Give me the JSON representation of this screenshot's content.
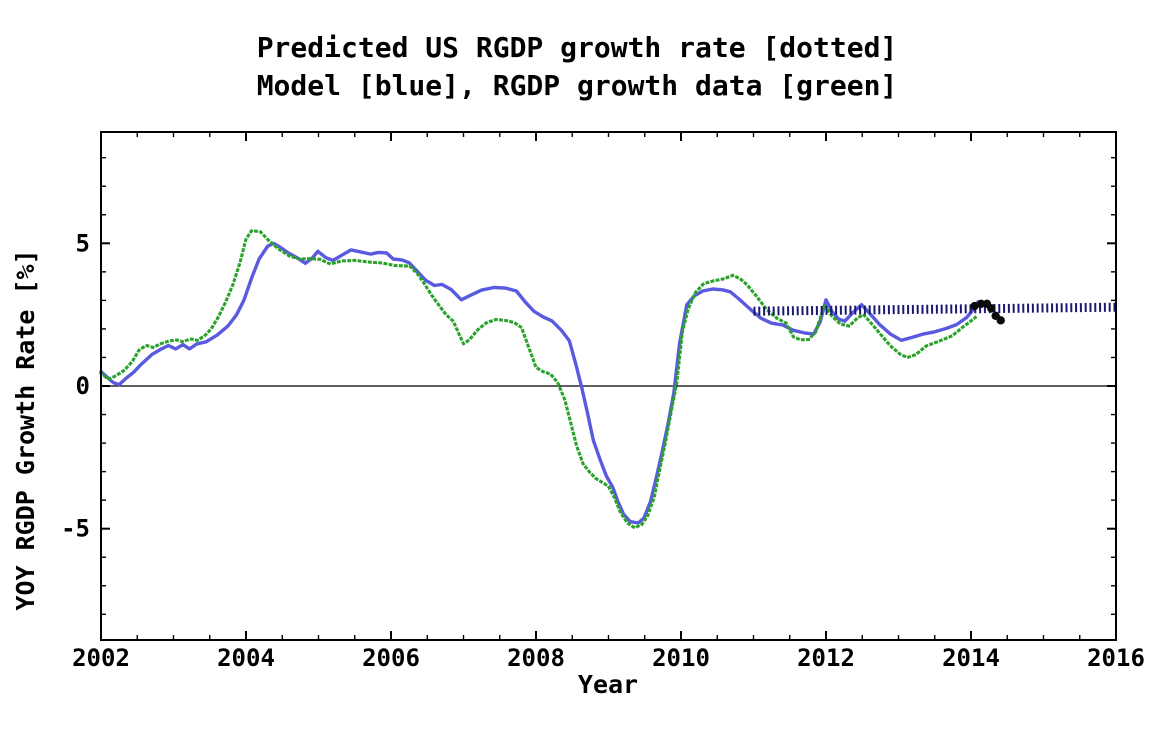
{
  "title": {
    "line1": "Predicted US RGDP growth rate [dotted]",
    "line2": "Model [blue], RGDP growth data [green]"
  },
  "chart_data": {
    "type": "line",
    "title": "Predicted US RGDP growth rate [dotted] Model [blue], RGDP growth data [green]",
    "xlabel": "Year",
    "ylabel": "YOY RGDP Growth Rate [%]",
    "xlim": [
      2002,
      2016
    ],
    "ylim": [
      -8.9,
      8.9
    ],
    "x_major_ticks": [
      2002,
      2004,
      2006,
      2008,
      2010,
      2012,
      2014,
      2016
    ],
    "x_minor_step": 0.5,
    "y_major_ticks": [
      -5,
      0,
      5
    ],
    "y_minor_step": 1,
    "zero_line": true,
    "grid": false,
    "legend_position": "none",
    "colors": {
      "model_blue": "#5a5ae0",
      "data_green": "#2aa32a",
      "prediction_navy": "#191970",
      "recent_dots_black": "#0a0a0a",
      "axis_black": "#000000"
    },
    "series": [
      {
        "name": "Model",
        "style": "solid",
        "color": "#5a5ae0",
        "points": [
          [
            2002.0,
            0.5
          ],
          [
            2002.08,
            0.32
          ],
          [
            2002.17,
            0.12
          ],
          [
            2002.25,
            0.05
          ],
          [
            2002.35,
            0.28
          ],
          [
            2002.45,
            0.48
          ],
          [
            2002.55,
            0.75
          ],
          [
            2002.7,
            1.1
          ],
          [
            2002.82,
            1.28
          ],
          [
            2002.93,
            1.42
          ],
          [
            2003.03,
            1.3
          ],
          [
            2003.13,
            1.45
          ],
          [
            2003.22,
            1.3
          ],
          [
            2003.32,
            1.47
          ],
          [
            2003.45,
            1.55
          ],
          [
            2003.6,
            1.78
          ],
          [
            2003.75,
            2.1
          ],
          [
            2003.87,
            2.5
          ],
          [
            2003.97,
            3.0
          ],
          [
            2004.08,
            3.8
          ],
          [
            2004.18,
            4.45
          ],
          [
            2004.3,
            4.9
          ],
          [
            2004.38,
            5.0
          ],
          [
            2004.48,
            4.85
          ],
          [
            2004.58,
            4.67
          ],
          [
            2004.7,
            4.5
          ],
          [
            2004.82,
            4.3
          ],
          [
            2004.92,
            4.5
          ],
          [
            2004.99,
            4.72
          ],
          [
            2005.1,
            4.5
          ],
          [
            2005.2,
            4.4
          ],
          [
            2005.32,
            4.58
          ],
          [
            2005.45,
            4.77
          ],
          [
            2005.58,
            4.7
          ],
          [
            2005.72,
            4.62
          ],
          [
            2005.83,
            4.68
          ],
          [
            2005.94,
            4.66
          ],
          [
            2006.03,
            4.45
          ],
          [
            2006.15,
            4.42
          ],
          [
            2006.25,
            4.32
          ],
          [
            2006.35,
            4.05
          ],
          [
            2006.48,
            3.7
          ],
          [
            2006.6,
            3.52
          ],
          [
            2006.7,
            3.56
          ],
          [
            2006.83,
            3.38
          ],
          [
            2006.97,
            3.02
          ],
          [
            2007.1,
            3.18
          ],
          [
            2007.25,
            3.36
          ],
          [
            2007.42,
            3.45
          ],
          [
            2007.58,
            3.43
          ],
          [
            2007.73,
            3.33
          ],
          [
            2007.85,
            2.95
          ],
          [
            2007.97,
            2.62
          ],
          [
            2008.1,
            2.42
          ],
          [
            2008.22,
            2.28
          ],
          [
            2008.35,
            1.95
          ],
          [
            2008.46,
            1.58
          ],
          [
            2008.55,
            0.75
          ],
          [
            2008.63,
            -0.05
          ],
          [
            2008.71,
            -0.95
          ],
          [
            2008.79,
            -1.9
          ],
          [
            2008.88,
            -2.55
          ],
          [
            2008.97,
            -3.15
          ],
          [
            2009.06,
            -3.55
          ],
          [
            2009.13,
            -4.05
          ],
          [
            2009.21,
            -4.5
          ],
          [
            2009.3,
            -4.75
          ],
          [
            2009.41,
            -4.8
          ],
          [
            2009.49,
            -4.62
          ],
          [
            2009.58,
            -4.05
          ],
          [
            2009.66,
            -3.2
          ],
          [
            2009.74,
            -2.3
          ],
          [
            2009.82,
            -1.35
          ],
          [
            2009.9,
            -0.25
          ],
          [
            2009.98,
            1.5
          ],
          [
            2010.08,
            2.85
          ],
          [
            2010.18,
            3.15
          ],
          [
            2010.3,
            3.33
          ],
          [
            2010.44,
            3.4
          ],
          [
            2010.57,
            3.37
          ],
          [
            2010.68,
            3.3
          ],
          [
            2010.8,
            3.05
          ],
          [
            2010.95,
            2.7
          ],
          [
            2011.1,
            2.38
          ],
          [
            2011.25,
            2.2
          ],
          [
            2011.4,
            2.14
          ],
          [
            2011.55,
            1.95
          ],
          [
            2011.7,
            1.86
          ],
          [
            2011.83,
            1.82
          ],
          [
            2011.92,
            2.25
          ],
          [
            2012.0,
            3.02
          ],
          [
            2012.08,
            2.62
          ],
          [
            2012.17,
            2.35
          ],
          [
            2012.26,
            2.27
          ],
          [
            2012.37,
            2.57
          ],
          [
            2012.49,
            2.85
          ],
          [
            2012.6,
            2.55
          ],
          [
            2012.74,
            2.15
          ],
          [
            2012.89,
            1.82
          ],
          [
            2013.04,
            1.6
          ],
          [
            2013.18,
            1.7
          ],
          [
            2013.34,
            1.82
          ],
          [
            2013.5,
            1.9
          ],
          [
            2013.66,
            2.02
          ],
          [
            2013.8,
            2.15
          ],
          [
            2013.94,
            2.4
          ],
          [
            2014.04,
            2.7
          ],
          [
            2014.1,
            2.95
          ]
        ]
      },
      {
        "name": "RGDP growth data",
        "style": "dotted",
        "color": "#2aa32a",
        "points": [
          [
            2002.0,
            0.45
          ],
          [
            2002.1,
            0.24
          ],
          [
            2002.2,
            0.35
          ],
          [
            2002.32,
            0.55
          ],
          [
            2002.43,
            0.85
          ],
          [
            2002.53,
            1.28
          ],
          [
            2002.63,
            1.42
          ],
          [
            2002.72,
            1.35
          ],
          [
            2002.82,
            1.48
          ],
          [
            2002.93,
            1.57
          ],
          [
            2003.03,
            1.62
          ],
          [
            2003.13,
            1.55
          ],
          [
            2003.23,
            1.65
          ],
          [
            2003.33,
            1.6
          ],
          [
            2003.43,
            1.76
          ],
          [
            2003.52,
            2.0
          ],
          [
            2003.62,
            2.42
          ],
          [
            2003.72,
            2.95
          ],
          [
            2003.82,
            3.55
          ],
          [
            2003.92,
            4.35
          ],
          [
            2004.0,
            5.15
          ],
          [
            2004.08,
            5.45
          ],
          [
            2004.2,
            5.4
          ],
          [
            2004.32,
            5.08
          ],
          [
            2004.45,
            4.8
          ],
          [
            2004.6,
            4.55
          ],
          [
            2004.74,
            4.45
          ],
          [
            2004.88,
            4.46
          ],
          [
            2005.02,
            4.44
          ],
          [
            2005.16,
            4.28
          ],
          [
            2005.32,
            4.38
          ],
          [
            2005.5,
            4.4
          ],
          [
            2005.7,
            4.34
          ],
          [
            2005.88,
            4.31
          ],
          [
            2006.06,
            4.22
          ],
          [
            2006.26,
            4.2
          ],
          [
            2006.36,
            3.95
          ],
          [
            2006.46,
            3.58
          ],
          [
            2006.56,
            3.18
          ],
          [
            2006.66,
            2.83
          ],
          [
            2006.76,
            2.5
          ],
          [
            2006.86,
            2.27
          ],
          [
            2006.94,
            1.8
          ],
          [
            2007.0,
            1.48
          ],
          [
            2007.08,
            1.62
          ],
          [
            2007.2,
            1.98
          ],
          [
            2007.32,
            2.22
          ],
          [
            2007.45,
            2.33
          ],
          [
            2007.58,
            2.3
          ],
          [
            2007.7,
            2.22
          ],
          [
            2007.8,
            2.05
          ],
          [
            2007.9,
            1.35
          ],
          [
            2008.0,
            0.65
          ],
          [
            2008.1,
            0.5
          ],
          [
            2008.2,
            0.42
          ],
          [
            2008.3,
            0.12
          ],
          [
            2008.4,
            -0.5
          ],
          [
            2008.48,
            -1.3
          ],
          [
            2008.56,
            -2.1
          ],
          [
            2008.65,
            -2.73
          ],
          [
            2008.74,
            -3.02
          ],
          [
            2008.83,
            -3.25
          ],
          [
            2008.93,
            -3.4
          ],
          [
            2009.0,
            -3.52
          ],
          [
            2009.08,
            -3.9
          ],
          [
            2009.16,
            -4.4
          ],
          [
            2009.26,
            -4.8
          ],
          [
            2009.36,
            -4.97
          ],
          [
            2009.46,
            -4.85
          ],
          [
            2009.54,
            -4.55
          ],
          [
            2009.63,
            -3.9
          ],
          [
            2009.7,
            -3.0
          ],
          [
            2009.78,
            -2.05
          ],
          [
            2009.85,
            -1.1
          ],
          [
            2009.94,
            0.1
          ],
          [
            2010.02,
            1.9
          ],
          [
            2010.1,
            2.7
          ],
          [
            2010.2,
            3.28
          ],
          [
            2010.31,
            3.58
          ],
          [
            2010.44,
            3.68
          ],
          [
            2010.58,
            3.75
          ],
          [
            2010.72,
            3.88
          ],
          [
            2010.82,
            3.75
          ],
          [
            2010.91,
            3.55
          ],
          [
            2011.04,
            3.15
          ],
          [
            2011.18,
            2.68
          ],
          [
            2011.32,
            2.38
          ],
          [
            2011.45,
            2.2
          ],
          [
            2011.55,
            1.72
          ],
          [
            2011.65,
            1.62
          ],
          [
            2011.76,
            1.63
          ],
          [
            2011.86,
            1.9
          ],
          [
            2011.98,
            2.85
          ],
          [
            2012.08,
            2.45
          ],
          [
            2012.2,
            2.17
          ],
          [
            2012.32,
            2.1
          ],
          [
            2012.44,
            2.4
          ],
          [
            2012.52,
            2.5
          ],
          [
            2012.63,
            2.18
          ],
          [
            2012.75,
            1.82
          ],
          [
            2012.89,
            1.4
          ],
          [
            2013.02,
            1.12
          ],
          [
            2013.12,
            1.0
          ],
          [
            2013.24,
            1.1
          ],
          [
            2013.38,
            1.4
          ],
          [
            2013.56,
            1.57
          ],
          [
            2013.74,
            1.76
          ],
          [
            2013.88,
            2.05
          ],
          [
            2014.0,
            2.28
          ],
          [
            2014.06,
            2.4
          ]
        ]
      },
      {
        "name": "Predicted US RGDP growth rate",
        "style": "thick-dotted",
        "color": "#191970",
        "points": [
          [
            2011.0,
            2.62
          ],
          [
            2016.0,
            2.76
          ]
        ]
      },
      {
        "name": "Recent RGDP data points",
        "style": "scatter",
        "color": "#0a0a0a",
        "points": [
          [
            2014.05,
            2.8
          ],
          [
            2014.14,
            2.88
          ],
          [
            2014.22,
            2.88
          ],
          [
            2014.28,
            2.72
          ],
          [
            2014.34,
            2.46
          ],
          [
            2014.41,
            2.3
          ]
        ]
      }
    ]
  },
  "axis": {
    "x_tick_labels": [
      "2002",
      "2004",
      "2006",
      "2008",
      "2010",
      "2012",
      "2014",
      "2016"
    ],
    "y_tick_labels": [
      "5",
      "0",
      "-5"
    ],
    "y_tick_values": [
      5,
      0,
      -5
    ]
  }
}
